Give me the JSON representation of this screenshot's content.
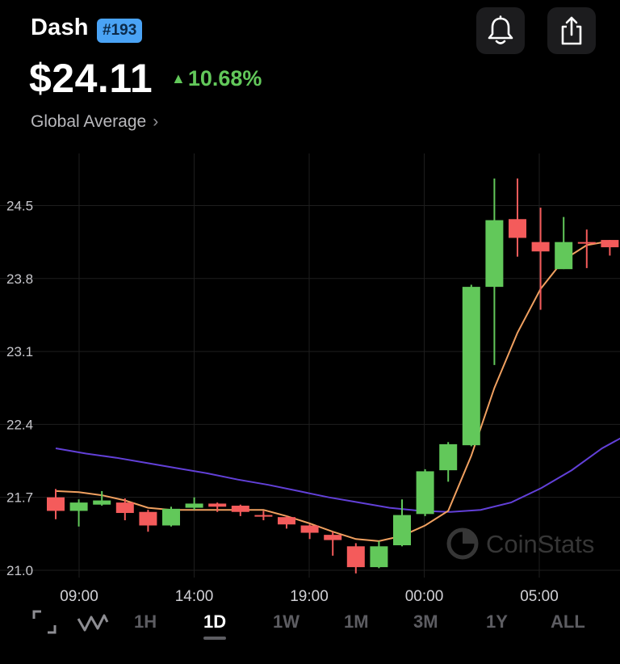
{
  "header": {
    "coin_name": "Dash",
    "rank": "#193",
    "price": "$24.11",
    "change": "10.68%",
    "change_color": "#62c85a",
    "source": "Global Average",
    "bell_icon": "bell-icon",
    "share_icon": "share-icon"
  },
  "watermark": "CoinStats",
  "timeframes": [
    "1H",
    "1D",
    "1W",
    "1M",
    "3M",
    "1Y",
    "ALL"
  ],
  "active_timeframe": "1D",
  "chart_data": {
    "type": "candlestick",
    "x_ticks": [
      "09:00",
      "14:00",
      "19:00",
      "00:00",
      "05:00"
    ],
    "y_ticks": [
      21.0,
      21.7,
      22.4,
      23.1,
      23.8,
      24.5
    ],
    "ylim": [
      20.93,
      25.0
    ],
    "up_color": "#62c85a",
    "down_color": "#f45b5b",
    "candles": [
      {
        "o": 21.7,
        "c": 21.57,
        "h": 21.78,
        "l": 21.49
      },
      {
        "o": 21.57,
        "c": 21.65,
        "h": 21.68,
        "l": 21.42
      },
      {
        "o": 21.63,
        "c": 21.67,
        "h": 21.76,
        "l": 21.62
      },
      {
        "o": 21.65,
        "c": 21.55,
        "h": 21.69,
        "l": 21.48
      },
      {
        "o": 21.56,
        "c": 21.43,
        "h": 21.58,
        "l": 21.37
      },
      {
        "o": 21.43,
        "c": 21.59,
        "h": 21.61,
        "l": 21.42
      },
      {
        "o": 21.6,
        "c": 21.64,
        "h": 21.7,
        "l": 21.58
      },
      {
        "o": 21.64,
        "c": 21.61,
        "h": 21.65,
        "l": 21.56
      },
      {
        "o": 21.62,
        "c": 21.56,
        "h": 21.63,
        "l": 21.52
      },
      {
        "o": 21.53,
        "c": 21.52,
        "h": 21.57,
        "l": 21.48
      },
      {
        "o": 21.51,
        "c": 21.44,
        "h": 21.52,
        "l": 21.4
      },
      {
        "o": 21.43,
        "c": 21.36,
        "h": 21.44,
        "l": 21.3
      },
      {
        "o": 21.34,
        "c": 21.29,
        "h": 21.37,
        "l": 21.14
      },
      {
        "o": 21.23,
        "c": 21.03,
        "h": 21.26,
        "l": 20.97
      },
      {
        "o": 21.03,
        "c": 21.23,
        "h": 21.28,
        "l": 21.02
      },
      {
        "o": 21.24,
        "c": 21.53,
        "h": 21.68,
        "l": 21.23
      },
      {
        "o": 21.54,
        "c": 21.95,
        "h": 21.97,
        "l": 21.52
      },
      {
        "o": 21.96,
        "c": 22.21,
        "h": 22.23,
        "l": 21.85
      },
      {
        "o": 22.2,
        "c": 23.72,
        "h": 23.74,
        "l": 22.19
      },
      {
        "o": 23.72,
        "c": 24.36,
        "h": 24.76,
        "l": 22.97
      },
      {
        "o": 24.37,
        "c": 24.19,
        "h": 24.76,
        "l": 24.01
      },
      {
        "o": 24.15,
        "c": 24.06,
        "h": 24.48,
        "l": 23.5
      },
      {
        "o": 23.89,
        "c": 24.15,
        "h": 24.39,
        "l": 23.89
      },
      {
        "o": 24.15,
        "c": 24.14,
        "h": 24.27,
        "l": 23.9
      },
      {
        "o": 24.17,
        "c": 24.1,
        "h": 24.17,
        "l": 24.02
      }
    ],
    "ma_short": {
      "color": "#f0a060",
      "values": [
        21.76,
        21.75,
        21.72,
        21.67,
        21.6,
        21.58,
        21.58,
        21.58,
        21.58,
        21.58,
        21.52,
        21.45,
        21.37,
        21.3,
        21.28,
        21.33,
        21.43,
        21.57,
        22.1,
        22.75,
        23.28,
        23.7,
        23.98,
        24.12,
        24.16
      ]
    },
    "ma_long": {
      "color": "#6240d8",
      "values": [
        22.17,
        22.12,
        22.08,
        22.03,
        21.98,
        21.93,
        21.87,
        21.82,
        21.76,
        21.7,
        21.65,
        21.6,
        21.57,
        21.56,
        21.58,
        21.65,
        21.79,
        21.96,
        22.17,
        22.33
      ]
    }
  }
}
